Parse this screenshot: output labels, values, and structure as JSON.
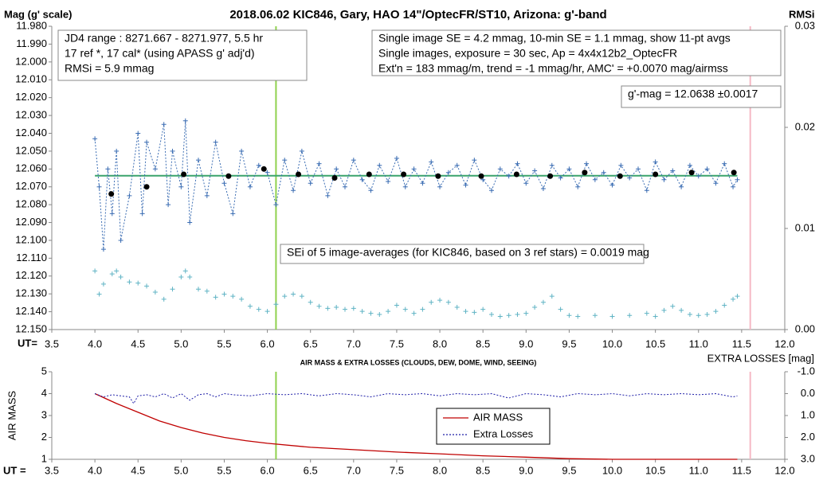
{
  "chart_data": [
    {
      "type": "scatter",
      "title": "2018.06.02  KIC846,  Gary, HAO 14\"/OptecFR/ST10,  Arizona:  g'-band",
      "y_label": "Mag (g' scale)",
      "y2_label": "RMSi",
      "x_label": "UT=",
      "xlim": [
        3.5,
        12.0
      ],
      "xticks": [
        3.5,
        {
          "value": 4,
          "label": "4.0"
        },
        4.5,
        {
          "value": 5,
          "label": "5.0"
        },
        5.5,
        {
          "value": 6,
          "label": "6.0"
        },
        6.5,
        {
          "value": 7,
          "label": "7.0"
        },
        7.5,
        {
          "value": 8,
          "label": "8.0"
        },
        8.5,
        {
          "value": 9,
          "label": "9.0"
        },
        9.5,
        {
          "value": 10,
          "label": "10.0"
        },
        10.5,
        {
          "value": 11,
          "label": "11.0"
        },
        11.5,
        {
          "value": 12,
          "label": "12.0"
        }
      ],
      "ylim": [
        12.15,
        11.98
      ],
      "yticks": [
        {
          "value": 11.98,
          "label": "11.980"
        },
        {
          "value": 11.99,
          "label": "11.990"
        },
        {
          "value": 12.0,
          "label": "12.000"
        },
        {
          "value": 12.01,
          "label": "12.010"
        },
        {
          "value": 12.02,
          "label": "12.020"
        },
        {
          "value": 12.03,
          "label": "12.030"
        },
        {
          "value": 12.04,
          "label": "12.040"
        },
        {
          "value": 12.05,
          "label": "12.050"
        },
        {
          "value": 12.06,
          "label": "12.060"
        },
        {
          "value": 12.07,
          "label": "12.070"
        },
        {
          "value": 12.08,
          "label": "12.080"
        },
        {
          "value": 12.09,
          "label": "12.090"
        },
        {
          "value": 12.1,
          "label": "12.100"
        },
        {
          "value": 12.11,
          "label": "12.110"
        },
        {
          "value": 12.12,
          "label": "12.120"
        },
        {
          "value": 12.13,
          "label": "12.130"
        },
        {
          "value": 12.14,
          "label": "12.140"
        },
        {
          "value": 12.15,
          "label": "12.150"
        }
      ],
      "y2lim": [
        0,
        0.03
      ],
      "y2ticks": [
        {
          "value": 0,
          "label": "0.00"
        },
        0.01,
        0.02,
        0.03
      ],
      "hline": {
        "y": 12.0638,
        "color": "#3aa46c"
      },
      "vlines": [
        {
          "x": 6.1,
          "color": "#8fd14f"
        },
        {
          "x": 11.6,
          "color": "#f5b8c4"
        }
      ],
      "series": [
        {
          "color": "#3b6db3",
          "marker": "plus",
          "line": "dotted",
          "x": [
            4.0,
            4.05,
            4.1,
            4.15,
            4.2,
            4.25,
            4.3,
            4.4,
            4.5,
            4.55,
            4.6,
            4.7,
            4.8,
            4.85,
            4.9,
            5.0,
            5.05,
            5.1,
            5.2,
            5.3,
            5.4,
            5.5,
            5.6,
            5.7,
            5.8,
            5.9,
            6.0,
            6.1,
            6.2,
            6.3,
            6.4,
            6.5,
            6.6,
            6.7,
            6.8,
            6.9,
            7.0,
            7.1,
            7.2,
            7.3,
            7.4,
            7.5,
            7.6,
            7.7,
            7.8,
            7.9,
            8.0,
            8.1,
            8.2,
            8.3,
            8.4,
            8.5,
            8.6,
            8.7,
            8.8,
            8.9,
            9.0,
            9.1,
            9.2,
            9.3,
            9.4,
            9.5,
            9.6,
            9.7,
            9.8,
            9.9,
            10.0,
            10.1,
            10.2,
            10.3,
            10.4,
            10.5,
            10.6,
            10.7,
            10.8,
            10.9,
            11.0,
            11.1,
            11.2,
            11.3,
            11.4,
            11.45
          ],
          "values": [
            12.043,
            12.07,
            12.105,
            12.06,
            12.085,
            12.05,
            12.1,
            12.075,
            12.04,
            12.085,
            12.045,
            12.06,
            12.035,
            12.08,
            12.05,
            12.07,
            12.033,
            12.09,
            12.055,
            12.075,
            12.045,
            12.068,
            12.085,
            12.05,
            12.07,
            12.058,
            12.062,
            12.08,
            12.055,
            12.072,
            12.05,
            12.068,
            12.057,
            12.075,
            12.06,
            12.07,
            12.055,
            12.066,
            12.072,
            12.058,
            12.067,
            12.054,
            12.07,
            12.06,
            12.068,
            12.056,
            12.07,
            12.062,
            12.058,
            12.069,
            12.055,
            12.066,
            12.072,
            12.06,
            12.064,
            12.057,
            12.068,
            12.061,
            12.071,
            12.058,
            12.065,
            12.06,
            12.07,
            12.057,
            12.066,
            12.062,
            12.069,
            12.058,
            12.065,
            12.06,
            12.072,
            12.056,
            12.066,
            12.061,
            12.07,
            12.058,
            12.064,
            12.06,
            12.068,
            12.057,
            12.07,
            12.066
          ]
        },
        {
          "color": "#000000",
          "marker": "circle",
          "line": "none",
          "x": [
            4.19,
            4.6,
            5.03,
            5.55,
            5.96,
            6.36,
            6.78,
            7.18,
            7.58,
            7.98,
            8.48,
            8.89,
            9.28,
            9.68,
            10.09,
            10.5,
            10.92,
            11.41
          ],
          "values": [
            12.074,
            12.07,
            12.063,
            12.064,
            12.06,
            12.063,
            12.065,
            12.063,
            12.063,
            12.064,
            12.064,
            12.063,
            12.064,
            12.062,
            12.064,
            12.063,
            12.062,
            12.062
          ]
        },
        {
          "color": "#5fb3c4",
          "marker": "plus",
          "line": "none",
          "axis": "y2",
          "x": [
            4.0,
            4.05,
            4.1,
            4.2,
            4.25,
            4.3,
            4.4,
            4.5,
            4.6,
            4.7,
            4.8,
            4.9,
            5.0,
            5.05,
            5.1,
            5.2,
            5.3,
            5.4,
            5.5,
            5.6,
            5.7,
            5.8,
            5.9,
            6.0,
            6.1,
            6.2,
            6.3,
            6.4,
            6.5,
            6.6,
            6.7,
            6.8,
            6.9,
            7.0,
            7.1,
            7.2,
            7.3,
            7.4,
            7.5,
            7.6,
            7.7,
            7.8,
            7.9,
            8.0,
            8.1,
            8.2,
            8.3,
            8.4,
            8.5,
            8.6,
            8.7,
            8.8,
            8.9,
            9.0,
            9.1,
            9.2,
            9.3,
            9.4,
            9.5,
            9.6,
            9.8,
            10.0,
            10.2,
            10.4,
            10.5,
            10.6,
            10.7,
            10.8,
            10.9,
            11.0,
            11.1,
            11.2,
            11.3,
            11.4,
            11.45
          ],
          "values": [
            0.0058,
            0.0035,
            0.0045,
            0.0055,
            0.0058,
            0.0052,
            0.0047,
            0.0046,
            0.0043,
            0.0037,
            0.003,
            0.004,
            0.0052,
            0.0058,
            0.0052,
            0.004,
            0.0038,
            0.0032,
            0.0035,
            0.0033,
            0.003,
            0.0023,
            0.002,
            0.0018,
            0.0025,
            0.0033,
            0.0035,
            0.0033,
            0.0027,
            0.0023,
            0.0021,
            0.0022,
            0.002,
            0.0021,
            0.0018,
            0.0016,
            0.0015,
            0.0018,
            0.0024,
            0.002,
            0.0016,
            0.002,
            0.0027,
            0.0029,
            0.0027,
            0.0022,
            0.0018,
            0.0017,
            0.002,
            0.0015,
            0.0013,
            0.0014,
            0.0015,
            0.0016,
            0.0022,
            0.0027,
            0.0033,
            0.002,
            0.0014,
            0.0013,
            0.0014,
            0.0013,
            0.0014,
            0.0016,
            0.0013,
            0.0019,
            0.0023,
            0.0019,
            0.0015,
            0.0014,
            0.0015,
            0.0018,
            0.0024,
            0.003,
            0.0033
          ]
        }
      ],
      "annotations": [
        {
          "lines": [
            "JD4 range : 8271.667 - 8271.977,  5.5  hr",
            "17 ref *,  17 cal* (using APASS g' adj'd)",
            "RMSi = 5.9 mmag"
          ]
        },
        {
          "lines": [
            "Single image SE = 4.2 mmag, 10-min SE = 1.1 mmag, show  11-pt avgs",
            "Single images, exposure = 30 sec, Ap = 4x4x12b2_OptecFR",
            "Ext'n = 183 mmag/m, trend =  -1 mmag/hr, AMC' = +0.0070 mag/airmss"
          ]
        },
        {
          "lines": [
            "g'-mag = 12.0638 ±0.0017"
          ]
        },
        {
          "lines": [
            "SEi of 5 image-averages (for KIC846, based on 3 ref stars) = 0.0019  mag"
          ]
        }
      ]
    },
    {
      "type": "line",
      "title": "AIR MASS & EXTRA LOSSES (CLOUDS, DEW, DOME, WIND, SEEING)",
      "y_label": "AIR MASS",
      "y2_label": "EXTRA LOSSES [mag]",
      "x_label": "UT =",
      "xlim": [
        3.5,
        12.0
      ],
      "xticks": [
        3.5,
        {
          "value": 4,
          "label": "4.0"
        },
        4.5,
        {
          "value": 5,
          "label": "5.0"
        },
        5.5,
        {
          "value": 6,
          "label": "6.0"
        },
        6.5,
        {
          "value": 7,
          "label": "7.0"
        },
        7.5,
        {
          "value": 8,
          "label": "8.0"
        },
        8.5,
        {
          "value": 9,
          "label": "9.0"
        },
        9.5,
        {
          "value": 10,
          "label": "10.0"
        },
        10.5,
        {
          "value": 11,
          "label": "11.0"
        },
        11.5,
        {
          "value": 12,
          "label": "12.0"
        }
      ],
      "ylim": [
        1,
        5
      ],
      "yticks": [
        1,
        2,
        3,
        4,
        5
      ],
      "y2lim": [
        3.0,
        -1.0
      ],
      "y2ticks": [
        {
          "value": -1,
          "label": "-1.0"
        },
        {
          "value": 0,
          "label": "0.0"
        },
        {
          "value": 1,
          "label": "1.0"
        },
        {
          "value": 2,
          "label": "2.0"
        },
        {
          "value": 3,
          "label": "3.0"
        }
      ],
      "legend": "center",
      "vlines": [
        {
          "x": 6.1,
          "color": "#8fd14f"
        },
        {
          "x": 11.6,
          "color": "#f5b8c4"
        }
      ],
      "series": [
        {
          "name": "AIR MASS",
          "color": "#c00000",
          "line": "solid",
          "x": [
            4.0,
            4.25,
            4.5,
            4.75,
            5.0,
            5.25,
            5.5,
            5.75,
            6.0,
            6.5,
            7.0,
            7.5,
            8.0,
            8.5,
            9.0,
            9.5,
            10.0,
            11.45
          ],
          "values": [
            4.0,
            3.55,
            3.15,
            2.75,
            2.45,
            2.2,
            2.0,
            1.85,
            1.73,
            1.55,
            1.44,
            1.33,
            1.25,
            1.16,
            1.1,
            1.03,
            1.0,
            1.0
          ]
        },
        {
          "name": "Extra Losses",
          "color": "#1f1fa8",
          "line": "dotted",
          "axis": "y2",
          "x": [
            4.0,
            4.1,
            4.2,
            4.3,
            4.4,
            4.45,
            4.5,
            4.6,
            4.7,
            4.8,
            4.9,
            5.0,
            5.1,
            5.2,
            5.3,
            5.4,
            5.5,
            5.6,
            5.8,
            6.0,
            6.2,
            6.4,
            6.6,
            6.8,
            7.0,
            7.2,
            7.4,
            7.6,
            7.8,
            8.0,
            8.2,
            8.4,
            8.6,
            8.8,
            9.0,
            9.2,
            9.4,
            9.6,
            9.8,
            10.0,
            10.2,
            10.4,
            10.6,
            10.8,
            11.0,
            11.2,
            11.4,
            11.45
          ],
          "values": [
            0.0,
            0.15,
            0.05,
            0.1,
            0.15,
            0.45,
            0.1,
            0.05,
            0.15,
            0.0,
            0.2,
            0.0,
            0.3,
            0.05,
            0.0,
            0.15,
            0.0,
            0.05,
            0.1,
            0.0,
            0.05,
            0.0,
            0.1,
            0.0,
            0.05,
            0.15,
            0.0,
            0.05,
            0.0,
            0.1,
            0.0,
            0.05,
            0.0,
            0.2,
            0.0,
            0.05,
            0.15,
            0.0,
            0.05,
            0.0,
            0.1,
            0.0,
            0.05,
            0.0,
            0.05,
            0.0,
            0.15,
            0.1
          ]
        }
      ]
    }
  ]
}
